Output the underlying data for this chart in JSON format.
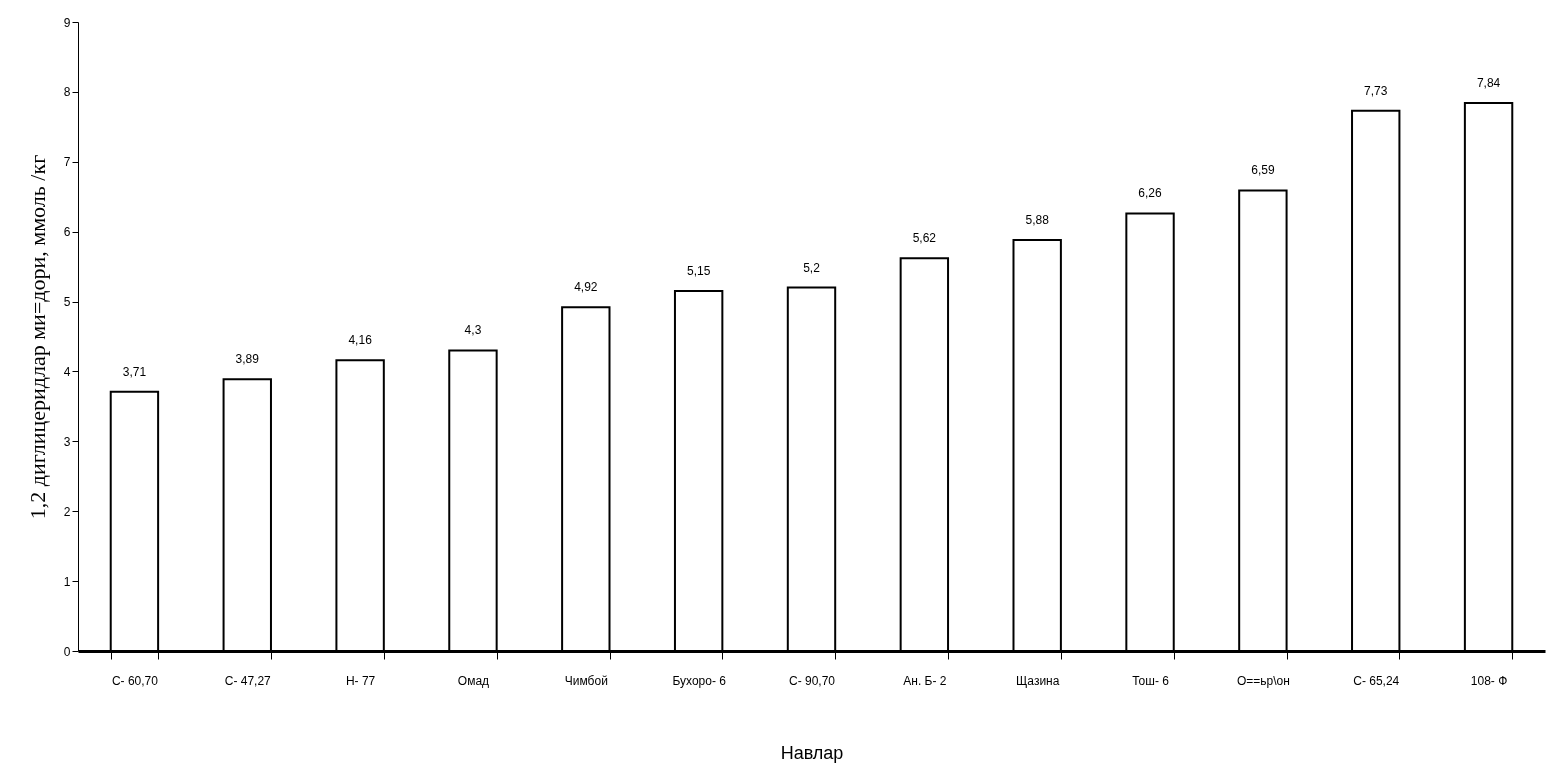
{
  "chart_data": {
    "type": "bar",
    "xlabel": "Навлар",
    "ylabel": "1,2 диглицеридлар ми=дори,  ммоль /кг",
    "categories": [
      "С-  60,70",
      "С-  47,27",
      "Н-  77",
      "Омад",
      "Чимбой",
      "Бухоро-  6",
      "С-  90,70",
      "Ан. Б-  2",
      "Щазина",
      "Тош-  6",
      "О==ьр\\он",
      "С-  65,24",
      "108-  Ф"
    ],
    "values": [
      3.71,
      3.89,
      4.16,
      4.3,
      4.92,
      5.15,
      5.2,
      5.62,
      5.88,
      6.26,
      6.59,
      7.73,
      7.84
    ],
    "color": "#ffffff",
    "ylim": [
      0,
      9
    ],
    "yticks": [
      0,
      1,
      2,
      3,
      4,
      5,
      6,
      7,
      8,
      9
    ],
    "value_labels": [
      "3,71",
      "3,89",
      "4,16",
      "4,3",
      "4,92",
      "5,15",
      "5,2",
      "5,62",
      "5,88",
      "6,26",
      "6,59",
      "7,73",
      "7,84"
    ],
    "grid": false
  }
}
